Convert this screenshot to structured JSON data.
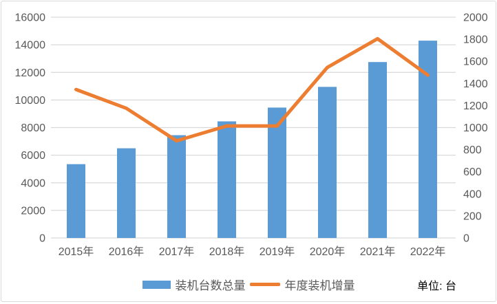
{
  "chart_data": {
    "type": "bar",
    "title": "",
    "categories": [
      "2015年",
      "2016年",
      "2017年",
      "2018年",
      "2019年",
      "2020年",
      "2021年",
      "2022年"
    ],
    "series": [
      {
        "name": "装机台数总量",
        "type": "bar",
        "axis": "left",
        "color": "#5b9bd5",
        "values": [
          5350,
          6500,
          7450,
          8450,
          9450,
          10950,
          12750,
          14300
        ]
      },
      {
        "name": "年度装机增量",
        "type": "line",
        "axis": "right",
        "color": "#ed7d31",
        "values": [
          1345,
          1175,
          880,
          1015,
          1015,
          1545,
          1805,
          1475
        ]
      }
    ],
    "left_axis": {
      "min": 0,
      "max": 16000,
      "step": 2000
    },
    "right_axis": {
      "min": 0,
      "max": 2000,
      "step": 200
    },
    "grid": true,
    "grid_color": "#d9d9d9",
    "tick_color": "#595959",
    "legend_position": "bottom",
    "unit_label": "单位: 台"
  }
}
